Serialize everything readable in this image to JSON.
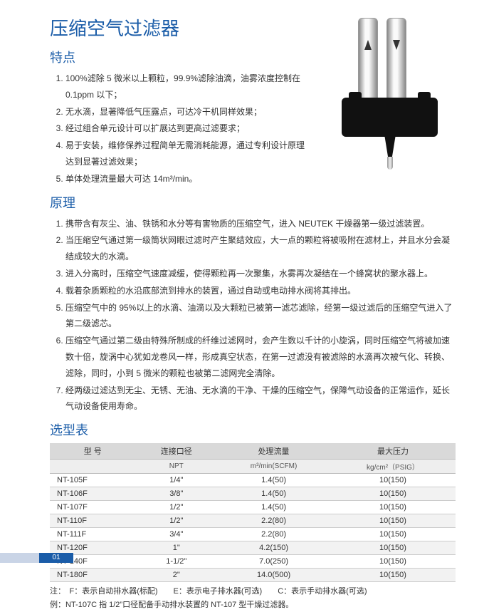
{
  "title": "压缩空气过滤器",
  "sections": {
    "features_heading": "特点",
    "principle_heading": "原理",
    "table_heading": "选型表"
  },
  "features": [
    "100%滤除 5 微米以上颗粒，99.9%滤除油滴，油雾浓度控制在 0.1ppm 以下；",
    "无水滴，显著降低气压露点，可达冷干机同样效果；",
    "经过组合单元设计可以扩展达到更高过滤要求；",
    "易于安装，维修保养过程简单无需消耗能源，通过专利设计原理达到显著过滤效果；",
    "单体处理流量最大可达 14m³/min。"
  ],
  "principles": [
    "携带含有灰尘、油、铁锈和水分等有害物质的压缩空气，进入 NEUTEK 干燥器第一级过滤装置。",
    "当压缩空气通过第一级筒状网眼过滤时产生聚结效应，大一点的颗粒将被吸附在滤材上，并且水分会凝结成较大的水滴。",
    "进入分离时，压缩空气速度减缓，使得颗粒再一次聚集，水雾再次凝结在一个蜂窝状的聚水器上。",
    "载着杂质颗粒的水沿底部流到排水的装置，通过自动或电动排水阀将其排出。",
    "压缩空气中的 95%以上的水滴、油滴以及大颗粒已被第一滤芯滤除，经第一级过滤后的压缩空气进入了第二级滤芯。",
    "压缩空气通过第二级由特殊所制成的纤维过滤网时，会产生数以千计的小旋涡，同时压缩空气将被加速数十倍，旋涡中心犹如龙卷风一样，形成真空状态，在第一过滤没有被滤除的水滴再次被气化、转换、滤除，同时，小到 5 微米的颗粒也被第二滤网完全清除。",
    "经两级过滤达到无尘、无锈、无油、无水滴的干净、干燥的压缩空气，保障气动设备的正常运作，延长气动设备使用寿命。"
  ],
  "table": {
    "headers1": [
      "型 号",
      "连接口径",
      "处理流量",
      "最大压力"
    ],
    "headers2": [
      "",
      "NPT",
      "m³/min(SCFM)",
      "kg/cm²（PSIG）"
    ],
    "rows": [
      [
        "NT-105F",
        "1/4\"",
        "1.4(50)",
        "10(150)"
      ],
      [
        "NT-106F",
        "3/8\"",
        "1.4(50)",
        "10(150)"
      ],
      [
        "NT-107F",
        "1/2\"",
        "1.4(50)",
        "10(150)"
      ],
      [
        "NT-110F",
        "1/2\"",
        "2.2(80)",
        "10(150)"
      ],
      [
        "NT-111F",
        "3/4\"",
        "2.2(80)",
        "10(150)"
      ],
      [
        "NT-120F",
        "1\"",
        "4.2(150)",
        "10(150)"
      ],
      [
        "NT-140F",
        "1-1/2\"",
        "7.0(250)",
        "10(150)"
      ],
      [
        "NT-180F",
        "2\"",
        "14.0(500)",
        "10(150)"
      ]
    ]
  },
  "notes": {
    "line1": "注：　F：表示自动排水器(标配)　　E：表示电子排水器(可选)　　C：表示手动排水器(可选)",
    "line2": "例：NT-107C 指 1/2”口径配备手动排水装置的 NT-107 型干燥过滤器。"
  },
  "page_number": "01",
  "colors": {
    "heading": "#1a5ca8",
    "table_header_bg": "#d9d9d9",
    "table_subheader_bg": "#eeeeee",
    "row_alt_bg": "#f2f2f2",
    "footer_accent": "#1a5ca8",
    "footer_light": "#c9d4e6"
  }
}
